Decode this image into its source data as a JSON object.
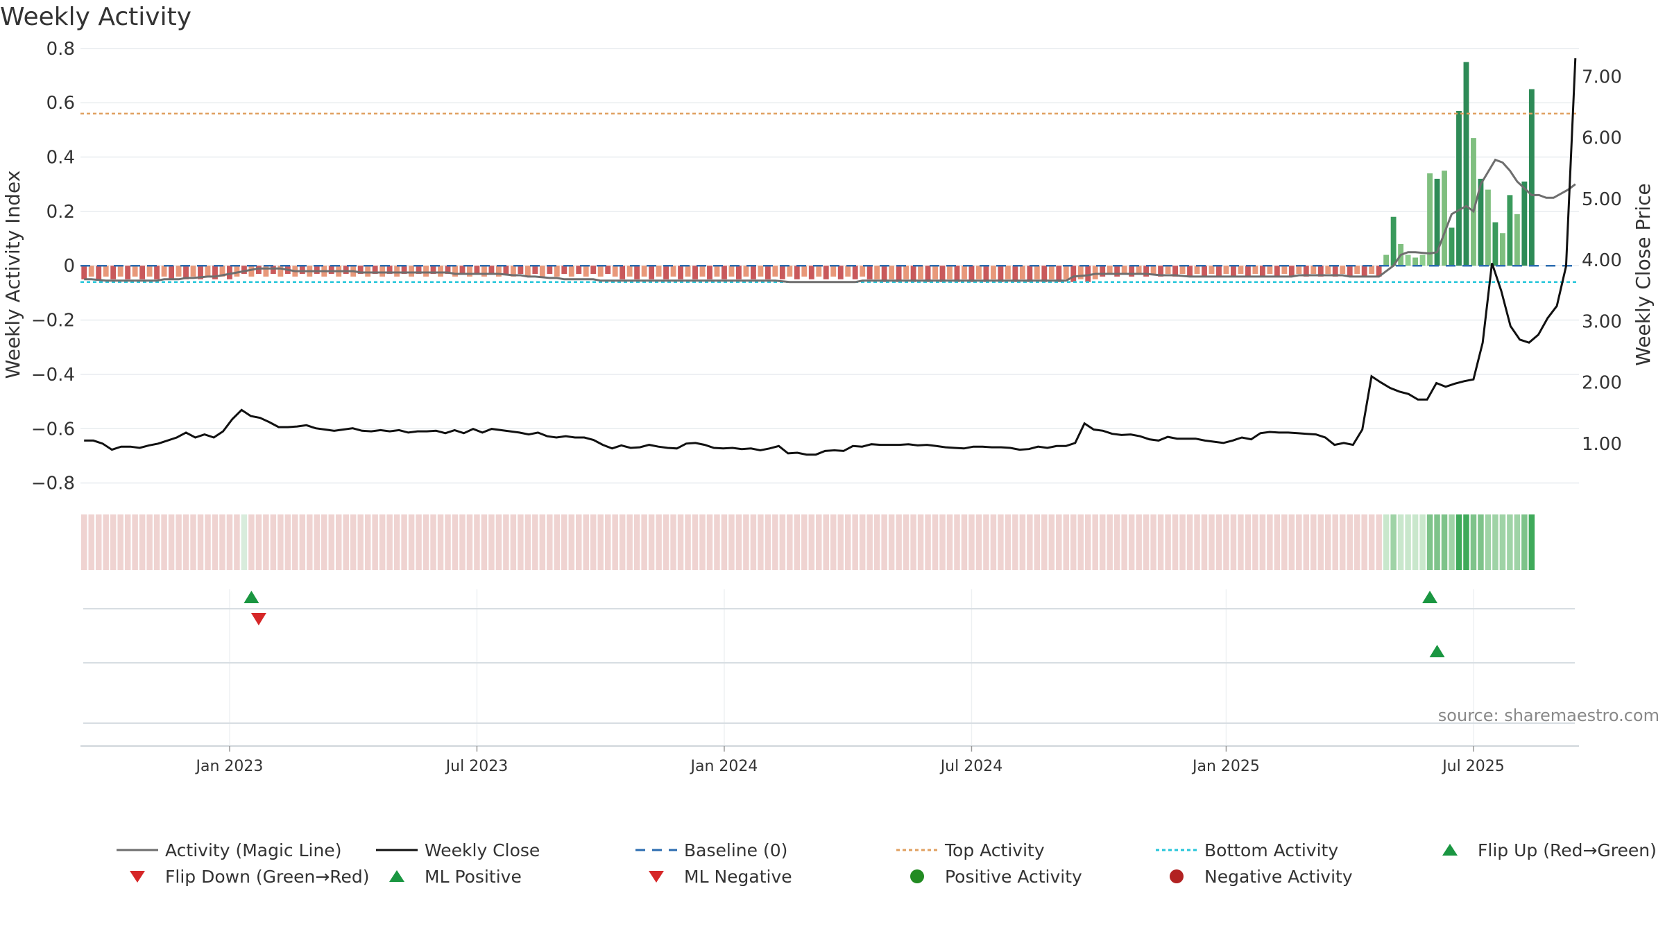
{
  "chart_data": {
    "type": "bar+line",
    "title": "Weekly Activity",
    "ylabel_left": "Weekly Activity Index",
    "ylabel_right": "Weekly Close Price",
    "ylim_left": [
      -0.88,
      0.82
    ],
    "ylim_right": [
      0.0,
      7.55
    ],
    "yticks_left": [
      -0.8,
      -0.6,
      -0.4,
      -0.2,
      0,
      0.2,
      0.4,
      0.6,
      0.8
    ],
    "yticks_left_labels": [
      "−0.8",
      "−0.6",
      "−0.4",
      "−0.2",
      "0",
      "0.2",
      "0.4",
      "0.6",
      "0.8"
    ],
    "yticks_right": [
      1,
      2,
      3,
      4,
      5,
      6,
      7
    ],
    "yticks_right_labels": [
      "1.00",
      "2.00",
      "3.00",
      "4.00",
      "5.00",
      "6.00",
      "7.00"
    ],
    "xticks": [
      {
        "week": 20,
        "label": "Jan 2023"
      },
      {
        "week": 54,
        "label": "Jul 2023"
      },
      {
        "week": 88,
        "label": "Jan 2024"
      },
      {
        "week": 122,
        "label": "Jul 2024"
      },
      {
        "week": 157,
        "label": "Jan 2025"
      },
      {
        "week": 191,
        "label": "Jul 2025"
      }
    ],
    "n_weeks": 206,
    "top_activity": 0.56,
    "bottom_activity": -0.06,
    "baseline": 0,
    "activity_bars": [
      -0.05,
      -0.04,
      -0.05,
      -0.04,
      -0.05,
      -0.04,
      -0.05,
      -0.04,
      -0.05,
      -0.04,
      -0.05,
      -0.04,
      -0.05,
      -0.04,
      -0.05,
      -0.04,
      -0.05,
      -0.04,
      -0.05,
      -0.04,
      -0.05,
      -0.04,
      -0.03,
      -0.04,
      -0.03,
      -0.04,
      -0.03,
      -0.04,
      -0.03,
      -0.04,
      -0.03,
      -0.04,
      -0.03,
      -0.04,
      -0.03,
      -0.04,
      -0.03,
      -0.04,
      -0.03,
      -0.04,
      -0.03,
      -0.04,
      -0.03,
      -0.04,
      -0.03,
      -0.04,
      -0.03,
      -0.04,
      -0.03,
      -0.04,
      -0.03,
      -0.04,
      -0.03,
      -0.04,
      -0.03,
      -0.04,
      -0.03,
      -0.04,
      -0.03,
      -0.04,
      -0.03,
      -0.04,
      -0.03,
      -0.04,
      -0.03,
      -0.04,
      -0.03,
      -0.04,
      -0.03,
      -0.04,
      -0.03,
      -0.04,
      -0.03,
      -0.04,
      -0.05,
      -0.04,
      -0.05,
      -0.04,
      -0.05,
      -0.04,
      -0.05,
      -0.04,
      -0.05,
      -0.04,
      -0.05,
      -0.04,
      -0.05,
      -0.04,
      -0.05,
      -0.04,
      -0.05,
      -0.04,
      -0.05,
      -0.04,
      -0.05,
      -0.04,
      -0.05,
      -0.04,
      -0.05,
      -0.04,
      -0.05,
      -0.04,
      -0.05,
      -0.04,
      -0.05,
      -0.04,
      -0.05,
      -0.04,
      -0.05,
      -0.05,
      -0.06,
      -0.05,
      -0.06,
      -0.05,
      -0.06,
      -0.05,
      -0.06,
      -0.05,
      -0.06,
      -0.05,
      -0.06,
      -0.05,
      -0.06,
      -0.05,
      -0.06,
      -0.05,
      -0.06,
      -0.05,
      -0.06,
      -0.05,
      -0.06,
      -0.05,
      -0.06,
      -0.05,
      -0.06,
      -0.05,
      -0.06,
      -0.05,
      -0.06,
      -0.05,
      -0.04,
      -0.03,
      -0.04,
      -0.03,
      -0.04,
      -0.03,
      -0.04,
      -0.03,
      -0.04,
      -0.03,
      -0.04,
      -0.03,
      -0.04,
      -0.03,
      -0.04,
      -0.03,
      -0.04,
      -0.03,
      -0.04,
      -0.03,
      -0.04,
      -0.03,
      -0.04,
      -0.03,
      -0.04,
      -0.03,
      -0.04,
      -0.03,
      -0.04,
      -0.03,
      -0.04,
      -0.03,
      -0.04,
      -0.03,
      -0.04,
      -0.03,
      -0.04,
      -0.03,
      -0.04,
      0.04,
      0.18,
      0.08,
      0.04,
      0.03,
      0.04,
      0.34,
      0.32,
      0.35,
      0.14,
      0.57,
      0.75,
      0.47,
      0.32,
      0.28,
      0.16,
      0.12,
      0.26,
      0.19,
      0.31,
      0.65
    ],
    "close_price": [
      1.05,
      1.05,
      1.0,
      0.9,
      0.95,
      0.95,
      0.93,
      0.97,
      1.0,
      1.05,
      1.1,
      1.18,
      1.1,
      1.15,
      1.1,
      1.2,
      1.4,
      1.55,
      1.45,
      1.42,
      1.35,
      1.27,
      1.27,
      1.28,
      1.3,
      1.25,
      1.23,
      1.21,
      1.23,
      1.25,
      1.21,
      1.2,
      1.22,
      1.2,
      1.22,
      1.18,
      1.2,
      1.2,
      1.21,
      1.17,
      1.22,
      1.17,
      1.24,
      1.18,
      1.24,
      1.22,
      1.2,
      1.18,
      1.15,
      1.18,
      1.12,
      1.1,
      1.12,
      1.1,
      1.1,
      1.06,
      0.98,
      0.92,
      0.97,
      0.93,
      0.94,
      0.98,
      0.95,
      0.93,
      0.92,
      1.0,
      1.01,
      0.98,
      0.93,
      0.92,
      0.93,
      0.91,
      0.92,
      0.89,
      0.92,
      0.96,
      0.84,
      0.85,
      0.82,
      0.82,
      0.88,
      0.89,
      0.88,
      0.96,
      0.95,
      0.99,
      0.98,
      0.98,
      0.98,
      0.99,
      0.97,
      0.98,
      0.96,
      0.94,
      0.93,
      0.92,
      0.95,
      0.95,
      0.94,
      0.94,
      0.93,
      0.9,
      0.91,
      0.95,
      0.93,
      0.96,
      0.96,
      1.01,
      1.33,
      1.23,
      1.21,
      1.16,
      1.14,
      1.15,
      1.12,
      1.07,
      1.05,
      1.11,
      1.08,
      1.08,
      1.08,
      1.05,
      1.03,
      1.01,
      1.05,
      1.1,
      1.07,
      1.17,
      1.19,
      1.18,
      1.18,
      1.17,
      1.16,
      1.15,
      1.1,
      0.98,
      1.01,
      0.98,
      1.23,
      2.1,
      2.0,
      1.91,
      1.85,
      1.81,
      1.72,
      1.72,
      1.99,
      1.93,
      1.98,
      2.02,
      2.05,
      2.65,
      3.95,
      3.5,
      2.92,
      2.7,
      2.65,
      2.78,
      3.05,
      3.25,
      3.9,
      7.3
    ],
    "magic_line": [
      -0.05,
      -0.05,
      -0.055,
      -0.055,
      -0.055,
      -0.055,
      -0.055,
      -0.055,
      -0.055,
      -0.05,
      -0.05,
      -0.045,
      -0.045,
      -0.04,
      -0.04,
      -0.035,
      -0.03,
      -0.02,
      -0.015,
      -0.01,
      -0.01,
      -0.01,
      -0.015,
      -0.02,
      -0.02,
      -0.02,
      -0.02,
      -0.02,
      -0.02,
      -0.02,
      -0.025,
      -0.025,
      -0.025,
      -0.025,
      -0.025,
      -0.025,
      -0.025,
      -0.025,
      -0.025,
      -0.025,
      -0.03,
      -0.03,
      -0.03,
      -0.03,
      -0.03,
      -0.03,
      -0.035,
      -0.035,
      -0.04,
      -0.04,
      -0.045,
      -0.045,
      -0.05,
      -0.05,
      -0.05,
      -0.05,
      -0.055,
      -0.055,
      -0.055,
      -0.055,
      -0.055,
      -0.055,
      -0.055,
      -0.055,
      -0.055,
      -0.055,
      -0.055,
      -0.055,
      -0.055,
      -0.055,
      -0.055,
      -0.055,
      -0.055,
      -0.055,
      -0.055,
      -0.055,
      -0.06,
      -0.06,
      -0.06,
      -0.06,
      -0.06,
      -0.06,
      -0.06,
      -0.06,
      -0.055,
      -0.055,
      -0.055,
      -0.055,
      -0.055,
      -0.055,
      -0.055,
      -0.055,
      -0.055,
      -0.055,
      -0.055,
      -0.055,
      -0.055,
      -0.055,
      -0.055,
      -0.055,
      -0.055,
      -0.055,
      -0.055,
      -0.055,
      -0.055,
      -0.055,
      -0.055,
      -0.04,
      -0.035,
      -0.03,
      -0.03,
      -0.03,
      -0.03,
      -0.03,
      -0.03,
      -0.03,
      -0.035,
      -0.035,
      -0.035,
      -0.04,
      -0.04,
      -0.04,
      -0.04,
      -0.04,
      -0.04,
      -0.04,
      -0.04,
      -0.04,
      -0.04,
      -0.04,
      -0.04,
      -0.035,
      -0.035,
      -0.035,
      -0.035,
      -0.035,
      -0.035,
      -0.04,
      -0.04,
      -0.04,
      -0.04,
      0.0,
      0.04,
      0.05,
      0.05,
      0.045,
      0.05,
      0.12,
      0.19,
      0.22,
      0.2,
      0.3,
      0.39,
      0.38,
      0.35,
      0.31,
      0.26,
      0.26,
      0.25,
      0.25,
      0.28,
      0.3
    ],
    "strip_note": "weekly activity heat strip: red=negative, green=positive",
    "flip_up_weeks": [
      23,
      185
    ],
    "flip_down_weeks": [
      24
    ],
    "ml_positive_weeks": [
      186
    ],
    "series": [
      {
        "name": "Activity (Magic Line)",
        "color": "#6e6e6e"
      },
      {
        "name": "Weekly Close",
        "color": "#111111"
      },
      {
        "name": "Baseline (0)",
        "color": "#2b6cb0"
      },
      {
        "name": "Top Activity",
        "color": "#e0a060"
      },
      {
        "name": "Bottom Activity",
        "color": "#26c6da"
      }
    ],
    "markers": [
      {
        "name": "Flip Up (Red→Green)",
        "color": "#1a9641"
      },
      {
        "name": "Flip Down (Green→Red)",
        "color": "#d62728"
      },
      {
        "name": "ML Positive",
        "color": "#1a9641"
      },
      {
        "name": "ML Negative",
        "color": "#d62728"
      },
      {
        "name": "Positive Activity",
        "color": "#228b22"
      },
      {
        "name": "Negative Activity",
        "color": "#b22222"
      }
    ],
    "source": "source: sharemaestro.com"
  },
  "legend": [
    {
      "label": "Activity (Magic Line)",
      "kind": "line",
      "color": "#6e6e6e"
    },
    {
      "label": "Weekly Close",
      "kind": "line",
      "color": "#111111"
    },
    {
      "label": "Baseline (0)",
      "kind": "dash",
      "color": "#2b6cb0"
    },
    {
      "label": "Top Activity",
      "kind": "dot",
      "color": "#e0a060"
    },
    {
      "label": "Bottom Activity",
      "kind": "dot",
      "color": "#26c6da"
    },
    {
      "label": "Flip Up (Red→Green)",
      "kind": "tri-up",
      "color": "#1a9641"
    },
    {
      "label": "Flip Down (Green→Red)",
      "kind": "tri-down",
      "color": "#d62728"
    },
    {
      "label": "ML Positive",
      "kind": "tri-up",
      "color": "#1a9641"
    },
    {
      "label": "ML Negative",
      "kind": "tri-down",
      "color": "#d62728"
    },
    {
      "label": "Positive Activity",
      "kind": "circle",
      "color": "#228b22"
    },
    {
      "label": "Negative Activity",
      "kind": "circle",
      "color": "#b22222"
    }
  ]
}
